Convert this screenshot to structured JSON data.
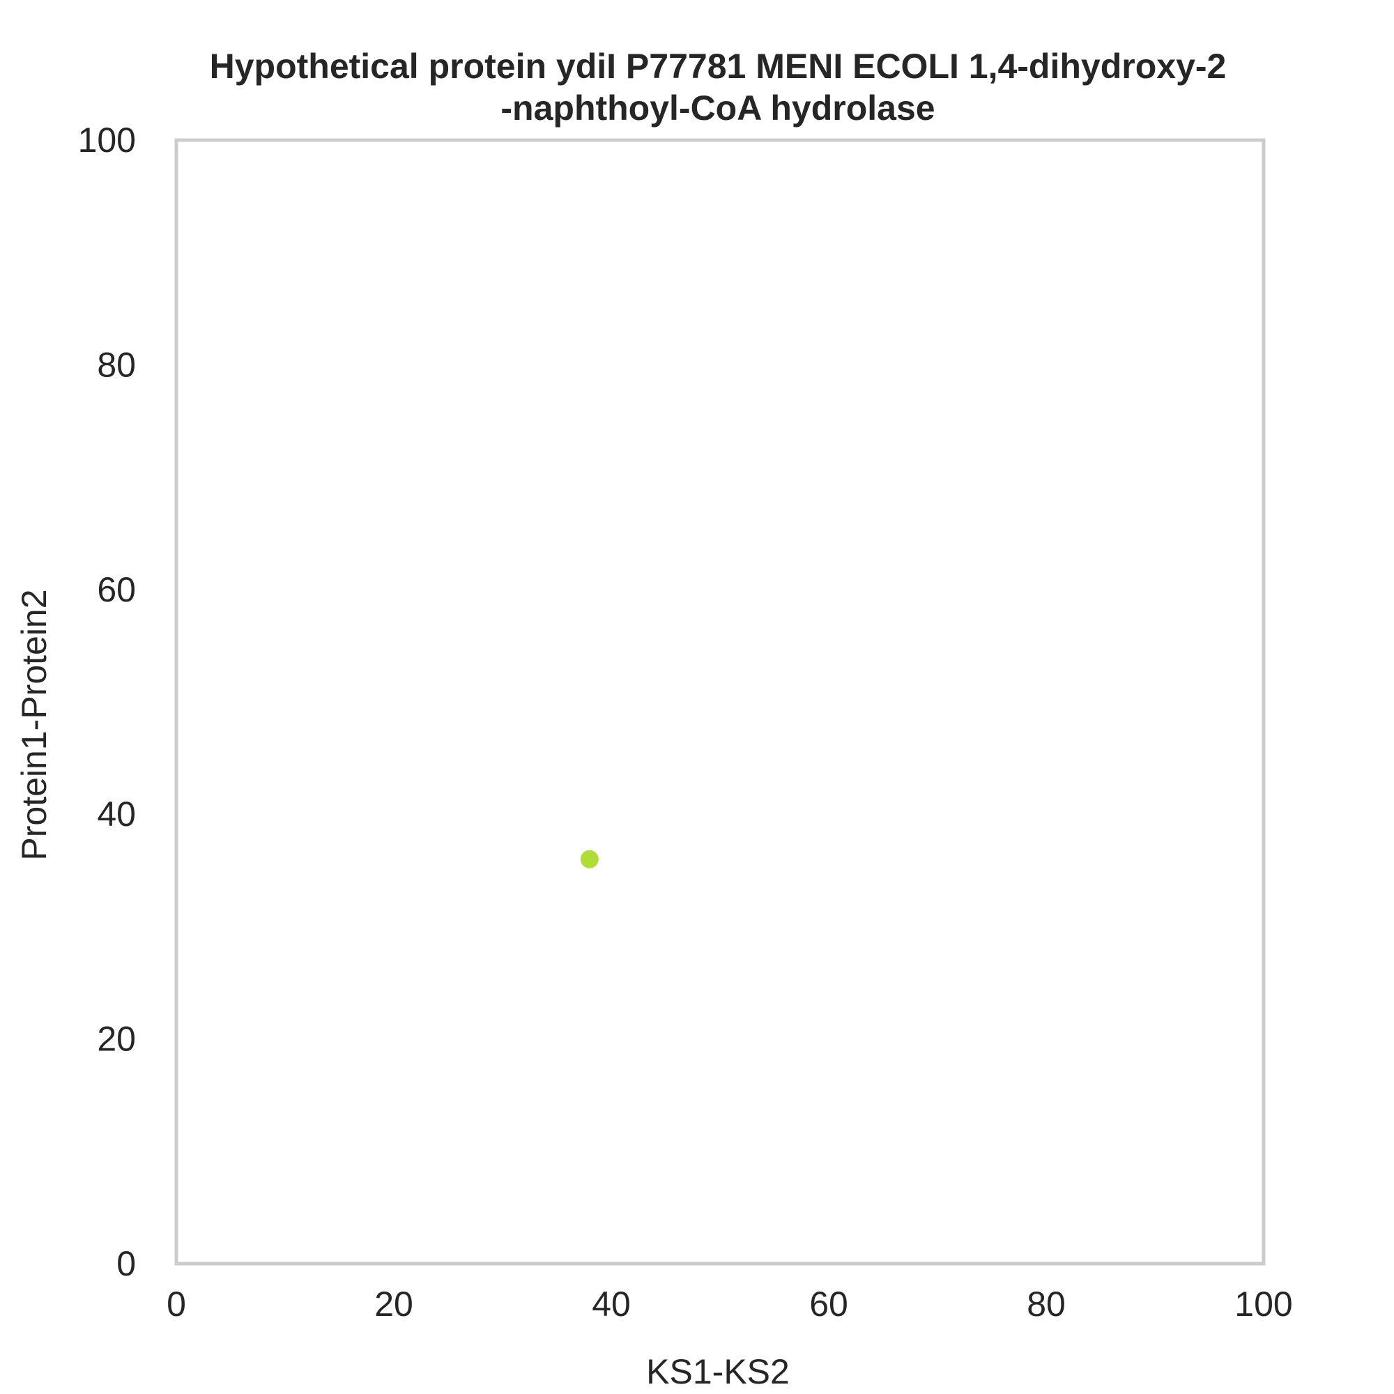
{
  "chart_data": {
    "type": "scatter",
    "title_lines": [
      "Hypothetical protein ydiI P77781 MENI ECOLI 1,4-dihydroxy-2",
      "-naphthoyl-CoA hydrolase"
    ],
    "xlabel": "KS1-KS2",
    "ylabel": "Protein1-Protein2",
    "xlim": [
      0,
      100
    ],
    "ylim": [
      0,
      100
    ],
    "xticks": [
      "0",
      "20",
      "40",
      "60",
      "80",
      "100"
    ],
    "yticks": [
      "0",
      "20",
      "40",
      "60",
      "80",
      "100"
    ],
    "grid": false,
    "legend": false,
    "frame_color": "#cccccc",
    "series": [
      {
        "color": "#a6d81f",
        "points": [
          {
            "x": 38,
            "y": 36
          }
        ]
      }
    ]
  }
}
